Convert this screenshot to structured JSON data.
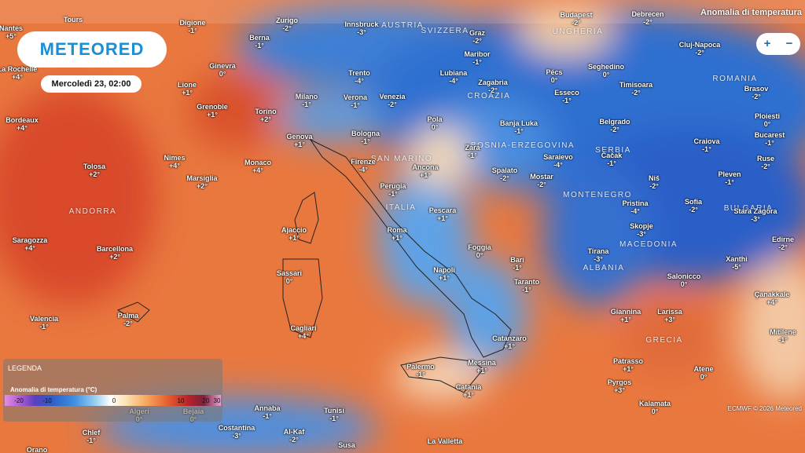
{
  "header": {
    "logo": "METEORED",
    "datetime": "Mercoledì 23, 02:00"
  },
  "layer": "Anomalia di temperatura",
  "zoom": [
    "+",
    "−"
  ],
  "legend": {
    "title": "LEGENDA",
    "subtitle": "Anomalia di temperatura (°C)",
    "ticks": [
      -20,
      -10,
      0,
      10,
      20,
      30
    ]
  },
  "attribution": "ECMWF © 2026 Meteored",
  "countries": [
    "AUSTRIA",
    "SVIZZERA",
    "UNGHERIA",
    "ROMANIA",
    "CROAZIA",
    "BOSNIA-ERZEGOVINA",
    "SERBIA",
    "MONTENEGRO",
    "BULGARIA",
    "ITALIA",
    "SAN MARINO",
    "ANDORRA",
    "MACEDONIA",
    "ALBANIA",
    "GRECIA"
  ],
  "cities": [
    {
      "name": "Tours"
    },
    {
      "name": "Nantes",
      "temp": "+5°"
    },
    {
      "name": "La Rochelle",
      "temp": "+4°"
    },
    {
      "name": "Bordeaux",
      "temp": "+4°"
    },
    {
      "name": "Digione",
      "temp": "-1°"
    },
    {
      "name": "Zurigo",
      "temp": "-2°"
    },
    {
      "name": "Berna",
      "temp": "-1°"
    },
    {
      "name": "Innsbruck",
      "temp": "-3°"
    },
    {
      "name": "Graz",
      "temp": "-2°"
    },
    {
      "name": "Budapest",
      "temp": "-2°"
    },
    {
      "name": "Debrecen",
      "temp": "-2°"
    },
    {
      "name": "Cluj-Napoca",
      "temp": "-2°"
    },
    {
      "name": "Ginevra",
      "temp": "0°"
    },
    {
      "name": "Lione",
      "temp": "+1°"
    },
    {
      "name": "Grenoble",
      "temp": "+1°"
    },
    {
      "name": "Torino",
      "temp": "+2°"
    },
    {
      "name": "Milano",
      "temp": "-1°"
    },
    {
      "name": "Verona",
      "temp": "-1°"
    },
    {
      "name": "Venezia",
      "temp": "-2°"
    },
    {
      "name": "Trento",
      "temp": "-4°"
    },
    {
      "name": "Lubiana",
      "temp": "-4°"
    },
    {
      "name": "Maribor",
      "temp": "-1°"
    },
    {
      "name": "Zagabria",
      "temp": "-2°"
    },
    {
      "name": "Pécs",
      "temp": "0°"
    },
    {
      "name": "Seghedino",
      "temp": "0°"
    },
    {
      "name": "Timisoara",
      "temp": "-2°"
    },
    {
      "name": "Brasov",
      "temp": "-2°"
    },
    {
      "name": "Esseco",
      "temp": "-1°"
    },
    {
      "name": "Nimes",
      "temp": "+4°"
    },
    {
      "name": "Marsiglia",
      "temp": "+2°"
    },
    {
      "name": "Monaco",
      "temp": "+4°"
    },
    {
      "name": "Genova",
      "temp": "+1°"
    },
    {
      "name": "Bologna",
      "temp": "-1°"
    },
    {
      "name": "Firenze",
      "temp": "-4°"
    },
    {
      "name": "Ancona",
      "temp": "+1°"
    },
    {
      "name": "Pola",
      "temp": "0°"
    },
    {
      "name": "Zara",
      "temp": "-1°"
    },
    {
      "name": "Spalato",
      "temp": "-2°"
    },
    {
      "name": "Mostar",
      "temp": "-2°"
    },
    {
      "name": "Banja Luka",
      "temp": "-1°"
    },
    {
      "name": "Saraievo",
      "temp": "-4°"
    },
    {
      "name": "Belgrado",
      "temp": "-2°"
    },
    {
      "name": "Čačak",
      "temp": "-1°"
    },
    {
      "name": "Niš",
      "temp": "-2°"
    },
    {
      "name": "Craiova",
      "temp": "-1°"
    },
    {
      "name": "Ploiesti",
      "temp": "0°"
    },
    {
      "name": "Bucarest",
      "temp": "-1°"
    },
    {
      "name": "Ruse",
      "temp": "-2°"
    },
    {
      "name": "Pleven",
      "temp": "-1°"
    },
    {
      "name": "Sofia",
      "temp": "-2°"
    },
    {
      "name": "Stara Zagora",
      "temp": "-3°"
    },
    {
      "name": "Edirne",
      "temp": "-2°"
    },
    {
      "name": "Tolosa",
      "temp": "+2°"
    },
    {
      "name": "Saragozza",
      "temp": "+4°"
    },
    {
      "name": "Barcellona",
      "temp": "+2°"
    },
    {
      "name": "Valencia",
      "temp": "-1°"
    },
    {
      "name": "Palma",
      "temp": "-2°"
    },
    {
      "name": "Ajaccio",
      "temp": "+1°"
    },
    {
      "name": "Sassari",
      "temp": "0°"
    },
    {
      "name": "Cagliari",
      "temp": "+4°"
    },
    {
      "name": "Perugia",
      "temp": "-1°"
    },
    {
      "name": "Roma",
      "temp": "+1°"
    },
    {
      "name": "Pescara",
      "temp": "+1°"
    },
    {
      "name": "Foggia",
      "temp": "0°"
    },
    {
      "name": "Napoli",
      "temp": "+1°"
    },
    {
      "name": "Bari",
      "temp": "-1°"
    },
    {
      "name": "Taranto",
      "temp": "-1°"
    },
    {
      "name": "Catanzaro",
      "temp": "+1°"
    },
    {
      "name": "Palermo",
      "temp": "-1°"
    },
    {
      "name": "Messina",
      "temp": "+1°"
    },
    {
      "name": "Catania",
      "temp": "+1°"
    },
    {
      "name": "Pristina",
      "temp": "-4°"
    },
    {
      "name": "Skopje",
      "temp": "-3°"
    },
    {
      "name": "Tirana",
      "temp": "-3°"
    },
    {
      "name": "Xanthi",
      "temp": "-5°"
    },
    {
      "name": "Salonicco",
      "temp": "0°"
    },
    {
      "name": "Çanakkale",
      "temp": "+4°"
    },
    {
      "name": "Giannina",
      "temp": "+1°"
    },
    {
      "name": "Larissa",
      "temp": "+3°"
    },
    {
      "name": "Patrasso",
      "temp": "+1°"
    },
    {
      "name": "Atene",
      "temp": "0°"
    },
    {
      "name": "Pyrgos",
      "temp": "+3°"
    },
    {
      "name": "Kalamata",
      "temp": "0°"
    },
    {
      "name": "Mitilene",
      "temp": "-1°"
    },
    {
      "name": "Algeri",
      "temp": "0°"
    },
    {
      "name": "Bejaia",
      "temp": "0°"
    },
    {
      "name": "Annaba",
      "temp": "-1°"
    },
    {
      "name": "Tunisi",
      "temp": "-1°"
    },
    {
      "name": "Chlef",
      "temp": "-1°"
    },
    {
      "name": "Costantina",
      "temp": "-3°"
    },
    {
      "name": "Al-Kaf",
      "temp": "-2°"
    },
    {
      "name": "La Valletta"
    },
    {
      "name": "Orano"
    },
    {
      "name": "Susa"
    }
  ]
}
